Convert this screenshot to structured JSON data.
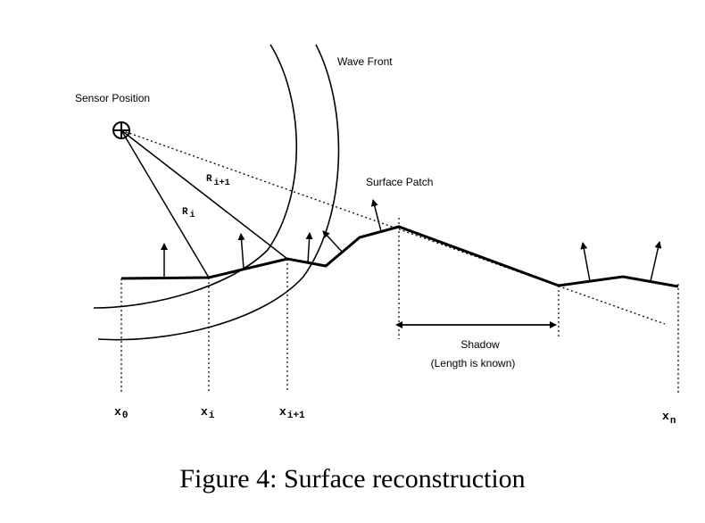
{
  "labels": {
    "sensor_position": "Sensor Position",
    "wave_front": "Wave Front",
    "surface_patch": "Surface Patch",
    "r_i_base": "R",
    "r_i_sub": "i",
    "r_i1_base": "R",
    "r_i1_sub": "i+1",
    "shadow": "Shadow",
    "shadow_note": "(Length is known)"
  },
  "axis_points": [
    {
      "base": "x",
      "sub": "0"
    },
    {
      "base": "x",
      "sub": "i"
    },
    {
      "base": "x",
      "sub": "i+1"
    },
    {
      "base": "x",
      "sub": "n"
    }
  ],
  "caption": "Figure 4:  Surface reconstruction"
}
